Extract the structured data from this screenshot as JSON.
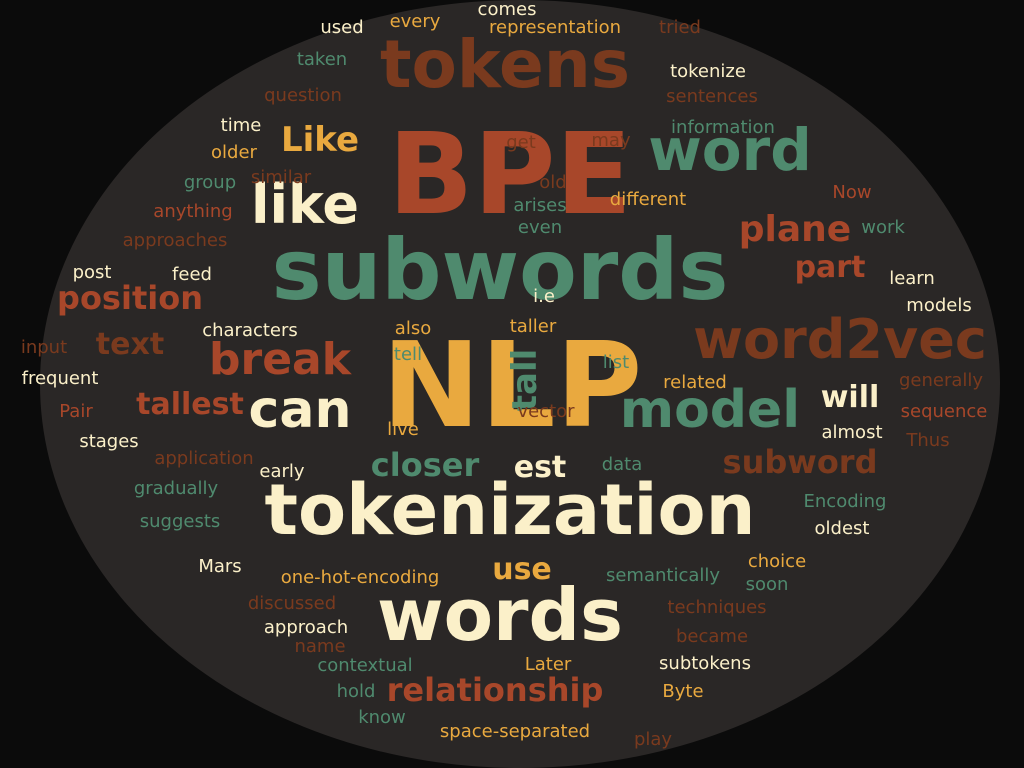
{
  "colors": {
    "background": "#0b0b0b",
    "cloud_shape": "#2a2726",
    "red_brown": "#a8472a",
    "teal": "#4f8a6e",
    "orange": "#e9a93f",
    "cream": "#fbf0c9",
    "brown": "#7a3a1e"
  },
  "words": [
    {
      "text": "BPE",
      "color": "red_brown",
      "weight": 10
    },
    {
      "text": "NLP",
      "color": "orange",
      "weight": 10
    },
    {
      "text": "subwords",
      "color": "teal",
      "weight": 9
    },
    {
      "text": "tokenization",
      "color": "cream",
      "weight": 9
    },
    {
      "text": "tokens",
      "color": "brown",
      "weight": 8
    },
    {
      "text": "words",
      "color": "cream",
      "weight": 8
    },
    {
      "text": "word",
      "color": "teal",
      "weight": 7
    },
    {
      "text": "word2vec",
      "color": "brown",
      "weight": 7
    },
    {
      "text": "like",
      "color": "cream",
      "weight": 6
    },
    {
      "text": "model",
      "color": "teal",
      "weight": 6
    },
    {
      "text": "can",
      "color": "cream",
      "weight": 6
    },
    {
      "text": "break",
      "color": "red_brown",
      "weight": 6
    },
    {
      "text": "relationship",
      "color": "red_brown",
      "weight": 5
    },
    {
      "text": "Like",
      "color": "orange",
      "weight": 5
    },
    {
      "text": "closer",
      "color": "teal",
      "weight": 5
    },
    {
      "text": "subword",
      "color": "brown",
      "weight": 5
    },
    {
      "text": "plane",
      "color": "red_brown",
      "weight": 5
    },
    {
      "text": "position",
      "color": "red_brown",
      "weight": 4
    },
    {
      "text": "text",
      "color": "brown",
      "weight": 4
    },
    {
      "text": "tallest",
      "color": "red_brown",
      "weight": 4
    },
    {
      "text": "part",
      "color": "red_brown",
      "weight": 4
    },
    {
      "text": "tall",
      "color": "teal",
      "weight": 4
    },
    {
      "text": "est",
      "color": "cream",
      "weight": 4
    },
    {
      "text": "use",
      "color": "orange",
      "weight": 4
    },
    {
      "text": "will",
      "color": "cream",
      "weight": 4
    },
    {
      "text": "Encoding",
      "color": "teal",
      "weight": 2
    },
    {
      "text": "one-hot-encoding",
      "color": "orange",
      "weight": 2
    },
    {
      "text": "representation",
      "color": "orange",
      "weight": 2
    },
    {
      "text": "space-separated",
      "color": "orange",
      "weight": 2
    },
    {
      "text": "comes",
      "color": "cream",
      "weight": 2
    },
    {
      "text": "every",
      "color": "orange",
      "weight": 2
    },
    {
      "text": "used",
      "color": "cream",
      "weight": 2
    },
    {
      "text": "tried",
      "color": "brown",
      "weight": 2
    },
    {
      "text": "taken",
      "color": "teal",
      "weight": 2
    },
    {
      "text": "tokenize",
      "color": "cream",
      "weight": 2
    },
    {
      "text": "question",
      "color": "brown",
      "weight": 2
    },
    {
      "text": "sentences",
      "color": "brown",
      "weight": 2
    },
    {
      "text": "time",
      "color": "cream",
      "weight": 2
    },
    {
      "text": "information",
      "color": "teal",
      "weight": 2
    },
    {
      "text": "older",
      "color": "orange",
      "weight": 2
    },
    {
      "text": "get",
      "color": "brown",
      "weight": 2
    },
    {
      "text": "may",
      "color": "brown",
      "weight": 2
    },
    {
      "text": "group",
      "color": "teal",
      "weight": 2
    },
    {
      "text": "similar",
      "color": "brown",
      "weight": 2
    },
    {
      "text": "old",
      "color": "brown",
      "weight": 2
    },
    {
      "text": "Now",
      "color": "red_brown",
      "weight": 2
    },
    {
      "text": "anything",
      "color": "red_brown",
      "weight": 2
    },
    {
      "text": "arises",
      "color": "teal",
      "weight": 2
    },
    {
      "text": "different",
      "color": "orange",
      "weight": 2
    },
    {
      "text": "approaches",
      "color": "brown",
      "weight": 2
    },
    {
      "text": "even",
      "color": "teal",
      "weight": 2
    },
    {
      "text": "work",
      "color": "teal",
      "weight": 2
    },
    {
      "text": "post",
      "color": "cream",
      "weight": 2
    },
    {
      "text": "feed",
      "color": "cream",
      "weight": 2
    },
    {
      "text": "learn",
      "color": "cream",
      "weight": 2
    },
    {
      "text": "i.e",
      "color": "cream",
      "weight": 2
    },
    {
      "text": "models",
      "color": "cream",
      "weight": 2
    },
    {
      "text": "characters",
      "color": "cream",
      "weight": 2
    },
    {
      "text": "also",
      "color": "orange",
      "weight": 2
    },
    {
      "text": "taller",
      "color": "orange",
      "weight": 2
    },
    {
      "text": "input",
      "color": "brown",
      "weight": 2
    },
    {
      "text": "frequent",
      "color": "cream",
      "weight": 2
    },
    {
      "text": "tell",
      "color": "teal",
      "weight": 2
    },
    {
      "text": "list",
      "color": "teal",
      "weight": 2
    },
    {
      "text": "related",
      "color": "orange",
      "weight": 2
    },
    {
      "text": "generally",
      "color": "brown",
      "weight": 2
    },
    {
      "text": "Pair",
      "color": "red_brown",
      "weight": 2
    },
    {
      "text": "live",
      "color": "orange",
      "weight": 2
    },
    {
      "text": "vector",
      "color": "brown",
      "weight": 2
    },
    {
      "text": "sequence",
      "color": "red_brown",
      "weight": 2
    },
    {
      "text": "stages",
      "color": "cream",
      "weight": 2
    },
    {
      "text": "almost",
      "color": "cream",
      "weight": 2
    },
    {
      "text": "Thus",
      "color": "brown",
      "weight": 2
    },
    {
      "text": "application",
      "color": "brown",
      "weight": 2
    },
    {
      "text": "data",
      "color": "teal",
      "weight": 2
    },
    {
      "text": "early",
      "color": "cream",
      "weight": 2
    },
    {
      "text": "gradually",
      "color": "teal",
      "weight": 2
    },
    {
      "text": "suggests",
      "color": "teal",
      "weight": 2
    },
    {
      "text": "oldest",
      "color": "cream",
      "weight": 2
    },
    {
      "text": "choice",
      "color": "orange",
      "weight": 2
    },
    {
      "text": "soon",
      "color": "teal",
      "weight": 2
    },
    {
      "text": "Mars",
      "color": "cream",
      "weight": 2
    },
    {
      "text": "semantically",
      "color": "teal",
      "weight": 2
    },
    {
      "text": "discussed",
      "color": "brown",
      "weight": 2
    },
    {
      "text": "techniques",
      "color": "brown",
      "weight": 2
    },
    {
      "text": "approach",
      "color": "cream",
      "weight": 2
    },
    {
      "text": "became",
      "color": "brown",
      "weight": 2
    },
    {
      "text": "name",
      "color": "brown",
      "weight": 2
    },
    {
      "text": "contextual",
      "color": "teal",
      "weight": 2
    },
    {
      "text": "Later",
      "color": "orange",
      "weight": 2
    },
    {
      "text": "subtokens",
      "color": "cream",
      "weight": 2
    },
    {
      "text": "hold",
      "color": "teal",
      "weight": 2
    },
    {
      "text": "Byte",
      "color": "orange",
      "weight": 2
    },
    {
      "text": "know",
      "color": "teal",
      "weight": 2
    },
    {
      "text": "play",
      "color": "brown",
      "weight": 2
    }
  ]
}
